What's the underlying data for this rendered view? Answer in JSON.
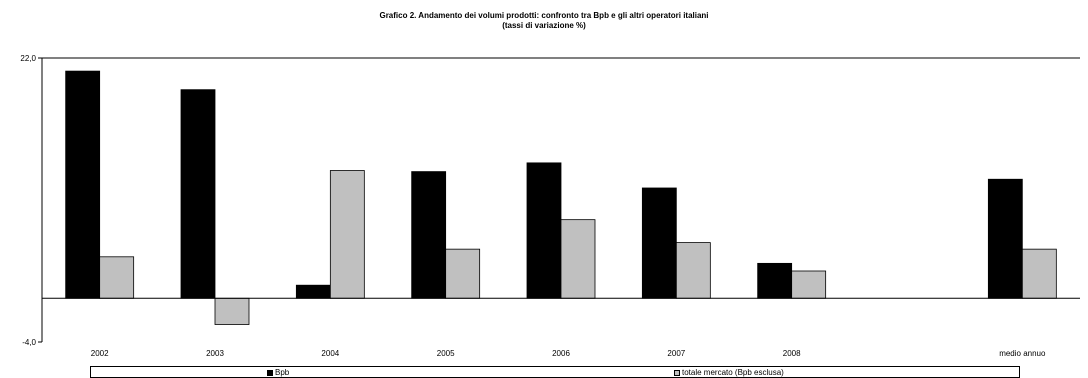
{
  "chart_data": {
    "type": "bar",
    "title_line1": "Grafico 2. Andamento dei volumi prodotti: confronto tra Bpb e gli altri operatori italiani",
    "title_line2": "(tassi di variazione %)",
    "categories": [
      "2002",
      "2003",
      "2004",
      "2005",
      "2006",
      "2007",
      "2008",
      "",
      "medio annuo"
    ],
    "series": [
      {
        "name": "Bpb",
        "color": "#000000",
        "values": [
          20.8,
          19.1,
          1.2,
          11.6,
          12.4,
          10.1,
          3.2,
          null,
          10.9
        ]
      },
      {
        "name": "totale mercato (Bpb esclusa)",
        "color": "#c0c0c0",
        "values": [
          3.8,
          -2.4,
          11.7,
          4.5,
          7.2,
          5.1,
          2.5,
          null,
          4.5
        ]
      }
    ],
    "ylim": [
      -4.0,
      22.0
    ],
    "ytick_labels": [
      "22,0",
      "-4,0"
    ],
    "grid": false,
    "legend_position": "bottom"
  }
}
